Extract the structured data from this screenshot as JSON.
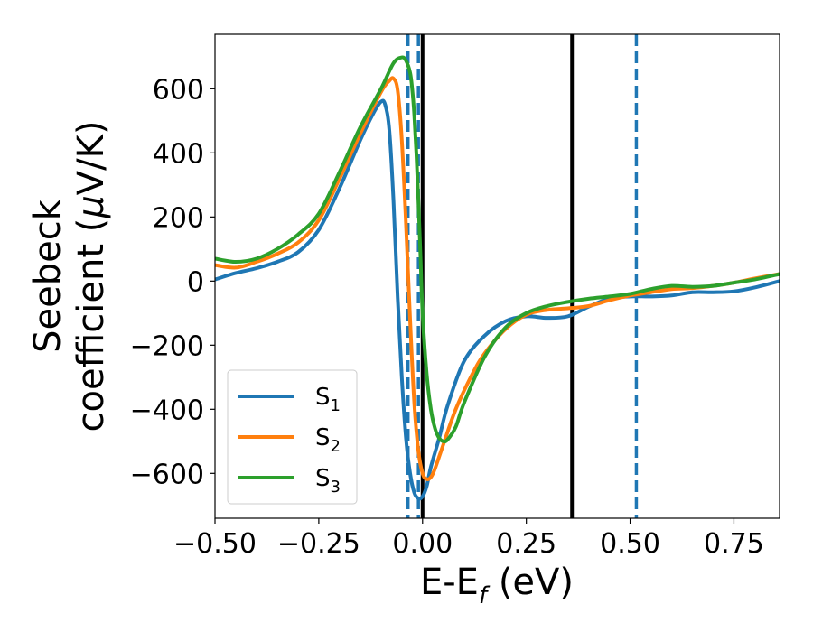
{
  "chart_data": {
    "type": "line",
    "xlabel": "E-E_f (eV)",
    "ylabel": "Seebeck coefficient (μV/K)",
    "xlim": [
      -0.5,
      0.86
    ],
    "ylim": [
      -740,
      770
    ],
    "xticks": [
      -0.5,
      -0.25,
      0.0,
      0.25,
      0.5,
      0.75
    ],
    "xtick_labels": [
      "−0.50",
      "−0.25",
      "0.00",
      "0.25",
      "0.50",
      "0.75"
    ],
    "yticks": [
      -600,
      -400,
      -200,
      0,
      200,
      400,
      600
    ],
    "ytick_labels": [
      "−600",
      "−400",
      "−200",
      "0",
      "200",
      "400",
      "600"
    ],
    "grid": false,
    "legend_position": "lower-left",
    "series": [
      {
        "name": "S1",
        "color": "#1f77b4",
        "x": [
          -0.5,
          -0.45,
          -0.4,
          -0.35,
          -0.3,
          -0.25,
          -0.2,
          -0.15,
          -0.12,
          -0.1,
          -0.09,
          -0.08,
          -0.07,
          -0.06,
          -0.05,
          -0.04,
          -0.03,
          -0.02,
          -0.01,
          0.0,
          0.01,
          0.02,
          0.04,
          0.06,
          0.1,
          0.15,
          0.2,
          0.25,
          0.3,
          0.35,
          0.4,
          0.45,
          0.5,
          0.55,
          0.6,
          0.65,
          0.7,
          0.75,
          0.8,
          0.86
        ],
        "y": [
          5,
          25,
          40,
          60,
          90,
          160,
          290,
          440,
          520,
          560,
          550,
          470,
          250,
          -50,
          -300,
          -490,
          -600,
          -660,
          -678,
          -672,
          -640,
          -580,
          -490,
          -390,
          -250,
          -170,
          -125,
          -110,
          -115,
          -110,
          -80,
          -55,
          -48,
          -48,
          -45,
          -35,
          -35,
          -32,
          -20,
          0
        ]
      },
      {
        "name": "S2",
        "color": "#ff7f0e",
        "x": [
          -0.5,
          -0.45,
          -0.4,
          -0.35,
          -0.3,
          -0.25,
          -0.2,
          -0.15,
          -0.1,
          -0.08,
          -0.07,
          -0.06,
          -0.05,
          -0.04,
          -0.03,
          -0.02,
          -0.01,
          0.0,
          0.01,
          0.02,
          0.03,
          0.05,
          0.08,
          0.12,
          0.15,
          0.2,
          0.25,
          0.3,
          0.35,
          0.4,
          0.45,
          0.5,
          0.55,
          0.6,
          0.65,
          0.7,
          0.75,
          0.8,
          0.86
        ],
        "y": [
          50,
          42,
          60,
          85,
          120,
          190,
          320,
          460,
          590,
          625,
          632,
          595,
          440,
          180,
          -120,
          -380,
          -530,
          -600,
          -618,
          -612,
          -585,
          -510,
          -400,
          -290,
          -225,
          -150,
          -105,
          -90,
          -85,
          -78,
          -60,
          -45,
          -35,
          -25,
          -22,
          -15,
          -5,
          8,
          22
        ]
      },
      {
        "name": "S3",
        "color": "#2ca02c",
        "x": [
          -0.5,
          -0.45,
          -0.4,
          -0.35,
          -0.3,
          -0.25,
          -0.2,
          -0.15,
          -0.1,
          -0.07,
          -0.05,
          -0.04,
          -0.03,
          -0.025,
          -0.02,
          -0.015,
          -0.01,
          -0.005,
          0.0,
          0.01,
          0.02,
          0.03,
          0.04,
          0.05,
          0.06,
          0.08,
          0.1,
          0.15,
          0.2,
          0.25,
          0.3,
          0.35,
          0.4,
          0.45,
          0.5,
          0.55,
          0.6,
          0.65,
          0.7,
          0.75,
          0.8,
          0.86
        ],
        "y": [
          70,
          60,
          70,
          100,
          145,
          210,
          340,
          480,
          600,
          680,
          698,
          688,
          650,
          600,
          520,
          400,
          250,
          80,
          -100,
          -290,
          -400,
          -460,
          -490,
          -500,
          -495,
          -455,
          -380,
          -235,
          -145,
          -100,
          -78,
          -65,
          -55,
          -48,
          -40,
          -25,
          -15,
          -18,
          -15,
          -5,
          5,
          22
        ]
      }
    ],
    "vertical_lines": [
      {
        "x": -0.035,
        "style": "dashed",
        "color": "#1f77b4"
      },
      {
        "x": -0.01,
        "style": "dashed",
        "color": "#1f77b4"
      },
      {
        "x": 0.0,
        "style": "solid",
        "color": "#000000"
      },
      {
        "x": 0.36,
        "style": "solid",
        "color": "#000000"
      },
      {
        "x": 0.515,
        "style": "dashed",
        "color": "#1f77b4"
      }
    ]
  }
}
